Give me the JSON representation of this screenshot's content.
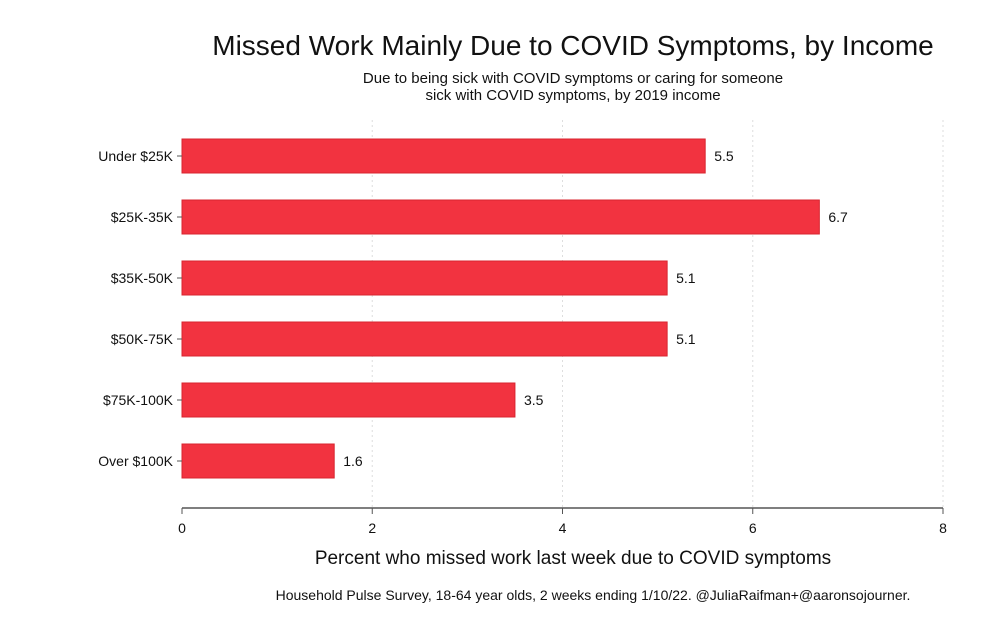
{
  "chart_data": {
    "type": "bar",
    "orientation": "horizontal",
    "title": "Missed Work Mainly Due to COVID Symptoms, by Income",
    "subtitle_lines": [
      "Due to being sick with COVID symptoms or caring for someone",
      "sick with COVID symptoms, by 2019 income"
    ],
    "categories": [
      "Under $25K",
      "$25K-35K",
      "$35K-50K",
      "$50K-75K",
      "$75K-100K",
      "Over $100K"
    ],
    "values": [
      5.5,
      6.7,
      5.1,
      5.1,
      3.5,
      1.6
    ],
    "value_labels": [
      "5.5",
      "6.7",
      "5.1",
      "5.1",
      "3.5",
      "1.6"
    ],
    "xlabel": "Percent who missed work last week due to COVID symptoms",
    "ylabel": "",
    "xlim": [
      0,
      8
    ],
    "xticks": [
      0,
      2,
      4,
      6,
      8
    ],
    "grid": true,
    "bar_color": "#f23340",
    "bar_border_color": "#d8252f",
    "caption": "Household Pulse Survey, 18-64 year olds, 2 weeks ending 1/10/22. @JuliaRaifman+@aaronsojourner."
  }
}
